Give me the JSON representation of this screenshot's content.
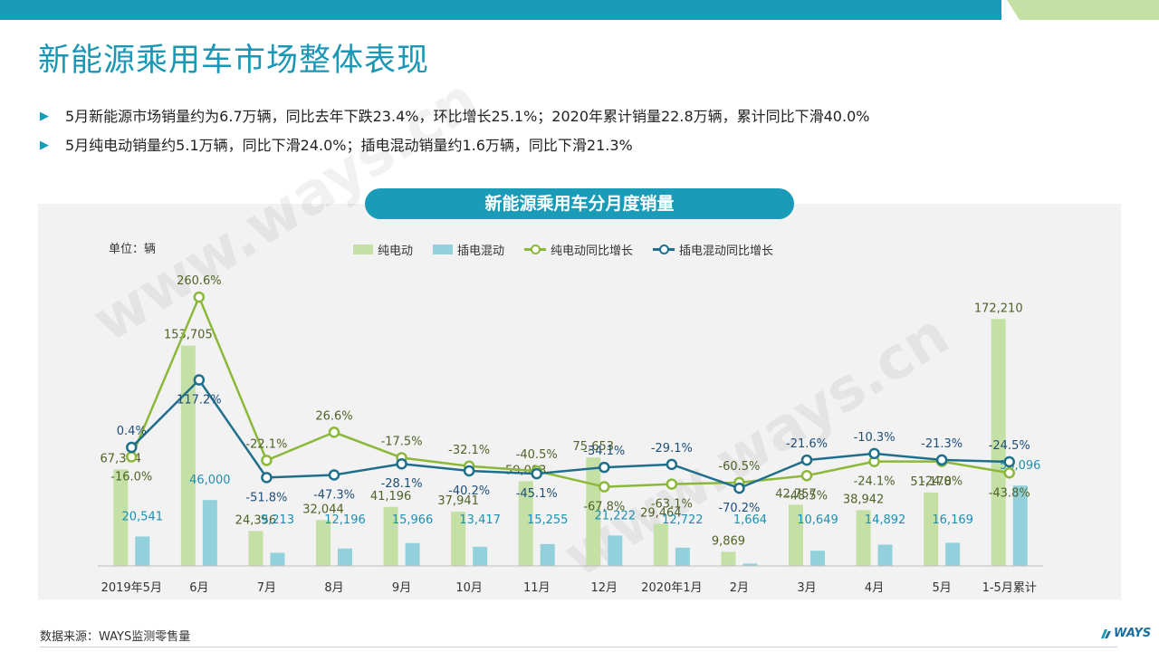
{
  "header": {
    "title": "新能源乘用车市场整体表现",
    "colors": {
      "bar_dark": "#1a9bb7",
      "bar_light": "#a9d08e"
    }
  },
  "bullets": [
    "5月新能源市场销量约为6.7万辆，同比去年下跌23.4%，环比增长25.1%；2020年累计销量22.8万辆，累计同比下滑40.0%",
    "5月纯电动销量约5.1万辆，同比下滑24.0%；插电混动销量约1.6万辆，同比下滑21.3%"
  ],
  "bullet_icon": "triangle-right-icon",
  "watermark": "www.ways.cn",
  "chart_data": {
    "type": "bar",
    "title": "新能源乘用车分月度销量",
    "unit_label": "单位：辆",
    "legend_position": "top",
    "categories": [
      "2019年5月",
      "6月",
      "7月",
      "8月",
      "9月",
      "10月",
      "11月",
      "12月",
      "2020年1月",
      "2月",
      "3月",
      "4月",
      "5月",
      "1-5月累计"
    ],
    "series": [
      {
        "name": "纯电动",
        "kind": "bar",
        "color": "#c5e0a5",
        "label_color": "#4f6228",
        "values": [
          67364,
          153705,
          24356,
          32044,
          41196,
          37941,
          59093,
          75653,
          29464,
          9869,
          42757,
          38942,
          51178,
          172210
        ],
        "labels": [
          "67,364",
          "153,705",
          "24,356",
          "32,044",
          "41,196",
          "37,941",
          "59,093",
          "75,653",
          "29,464",
          "9,869",
          "42,757",
          "38,942",
          "51,178",
          "172,210"
        ]
      },
      {
        "name": "插电混动",
        "kind": "bar",
        "color": "#92d1dc",
        "label_color": "#1f8fb0",
        "values": [
          20541,
          46000,
          9213,
          12196,
          15966,
          13417,
          15255,
          21222,
          12722,
          1664,
          10649,
          14892,
          16169,
          56096
        ],
        "labels": [
          "20,541",
          "46,000",
          "9,213",
          "12,196",
          "15,966",
          "13,417",
          "15,255",
          "21,222",
          "12,722",
          "1,664",
          "10,649",
          "14,892",
          "16,169",
          "56,096"
        ]
      },
      {
        "name": "纯电动同比增长",
        "kind": "line",
        "color": "#8cb83a",
        "label_color": "#4f6228",
        "values": [
          -16.0,
          260.6,
          -22.1,
          26.6,
          -17.5,
          -32.1,
          -40.5,
          -67.8,
          -63.1,
          -60.5,
          -48.5,
          -24.1,
          -24.0,
          -43.8
        ],
        "labels": [
          "-16.0%",
          "260.6%",
          "-22.1%",
          "26.6%",
          "-17.5%",
          "-32.1%",
          "-40.5%",
          "-67.8%",
          "-63.1%",
          "-60.5%",
          "-48.5%",
          "-24.1%",
          "-24.0%",
          "-43.8%"
        ]
      },
      {
        "name": "插电混动同比增长",
        "kind": "line",
        "color": "#1f6f8b",
        "label_color": "#1f4e79",
        "values": [
          0.4,
          117.2,
          -51.8,
          -47.3,
          -28.1,
          -40.2,
          -45.1,
          -34.1,
          -29.1,
          -70.2,
          -21.6,
          -10.3,
          -21.3,
          -24.5
        ],
        "labels": [
          "0.4%",
          "117.2%",
          "-51.8%",
          "-47.3%",
          "-28.1%",
          "-40.2%",
          "-45.1%",
          "-34.1%",
          "-29.1%",
          "-70.2%",
          "-21.6%",
          "-10.3%",
          "-21.3%",
          "-24.5%"
        ]
      }
    ],
    "bar_axis_range": [
      0,
      180000
    ],
    "line_axis_range": [
      -150,
      430
    ],
    "grid": false
  },
  "footer": {
    "source": "数据来源：WAYS监测零售量",
    "logo_text": "WAYS"
  }
}
